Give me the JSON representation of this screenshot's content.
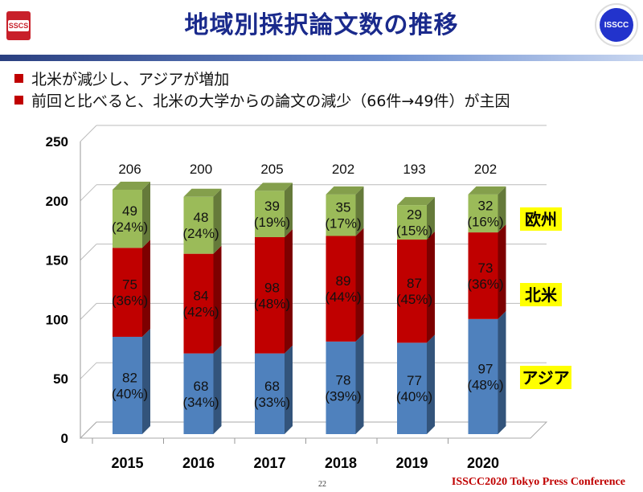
{
  "header": {
    "title": "地域別採択論文数の推移",
    "left_logo": "SSCS",
    "right_logo": "ISSCC"
  },
  "bullets": [
    "北米が減少し、アジアが増加",
    "前回と比べると、北米の大学からの論文の減少（66件→49件）が主因"
  ],
  "chart_data": {
    "type": "bar",
    "stacked": true,
    "style": "3d",
    "title": "",
    "xlabel": "",
    "ylabel": "",
    "categories": [
      "2015",
      "2016",
      "2017",
      "2018",
      "2019",
      "2020"
    ],
    "yticks": [
      "0",
      "50",
      "100",
      "150",
      "200",
      "250"
    ],
    "ylim": [
      0,
      250
    ],
    "grid": true,
    "series": [
      {
        "name": "アジア",
        "color": "#4f81bd",
        "values": [
          82,
          68,
          68,
          78,
          77,
          97
        ],
        "pct": [
          "(40%)",
          "(34%)",
          "(33%)",
          "(39%)",
          "(40%)",
          "(48%)"
        ]
      },
      {
        "name": "北米",
        "color": "#c00000",
        "values": [
          75,
          84,
          98,
          89,
          87,
          73
        ],
        "pct": [
          "(36%)",
          "(42%)",
          "(48%)",
          "(44%)",
          "(45%)",
          "(36%)"
        ]
      },
      {
        "name": "欧州",
        "color": "#9bbb59",
        "values": [
          49,
          48,
          39,
          35,
          29,
          32
        ],
        "pct": [
          "(24%)",
          "(24%)",
          "(19%)",
          "(17%)",
          "(15%)",
          "(16%)"
        ]
      }
    ],
    "totals": [
      "206",
      "200",
      "205",
      "202",
      "193",
      "202"
    ],
    "region_labels": [
      "欧州",
      "北米",
      "アジア"
    ],
    "region_label_color": "#ffff00"
  },
  "footer": {
    "page": "22",
    "conference": "ISSCC2020 Tokyo Press Conference"
  }
}
